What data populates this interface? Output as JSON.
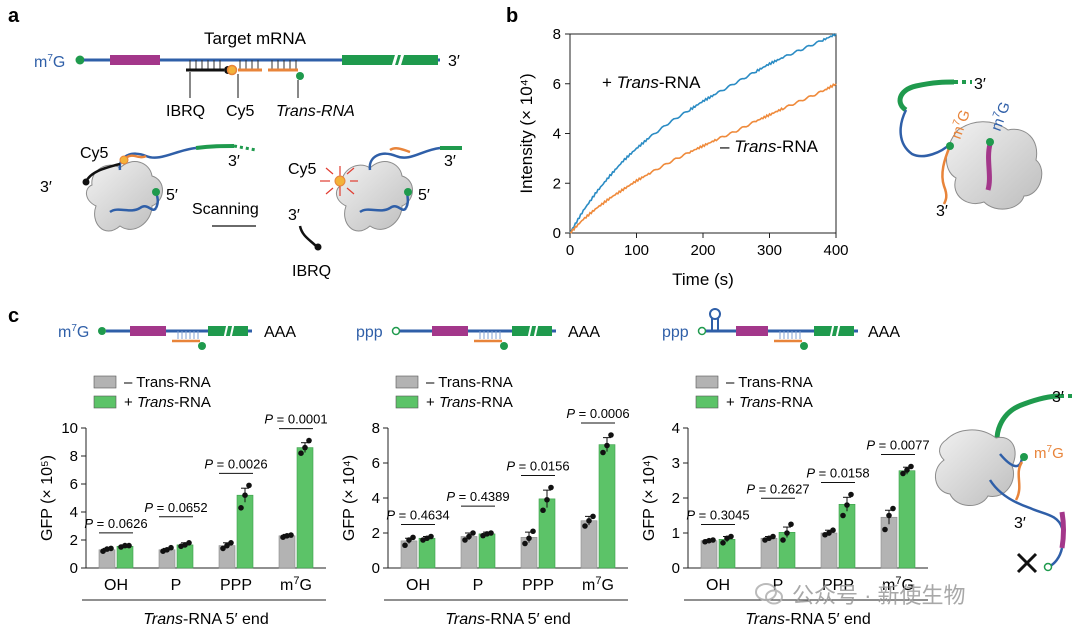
{
  "panels": {
    "a": "a",
    "b": "b",
    "c": "c"
  },
  "a": {
    "title": "Target mRNA",
    "cap": "m7G",
    "three_prime": "3′",
    "labels": {
      "ibrq": "IBRQ",
      "cy5": "Cy5",
      "trans": "Trans-RNA"
    },
    "left_cy5": "Cy5",
    "left_3": "3′",
    "left_5": "5′",
    "left_3b": "3′",
    "scanning": "Scanning",
    "right_cy5": "Cy5",
    "right_3": "3′",
    "right_5": "5′",
    "right_3b": "3′",
    "right_ibrq": "IBRQ"
  },
  "b_side": {
    "three_prime": "3′",
    "m7g_orange": "m7G",
    "m7g_blue": "m7G",
    "three_prime_b": "3′"
  },
  "c_side": {
    "three_prime": "3′",
    "m7g": "m7G",
    "three_prime_b": "3′"
  },
  "c_constructs": [
    {
      "cap": "m7G",
      "tail": "AAA"
    },
    {
      "cap": "ppp",
      "tail": "AAA"
    },
    {
      "cap": "ppp",
      "tail": "AAA"
    }
  ],
  "colors": {
    "blue": "#2f5fa8",
    "orange": "#e8843a",
    "green": "#1f9a4d",
    "magenta": "#a3378a",
    "grey_bar": "#b3b3b3",
    "green_bar": "#5cc368",
    "line_plus": "#2b8cc4",
    "line_minus": "#ef8a3b"
  },
  "chart_data": [
    {
      "type": "line",
      "title": "",
      "xlabel": "Time (s)",
      "ylabel": "Intensity (× 10⁴)",
      "xlim": [
        0,
        400
      ],
      "ylim": [
        0,
        8
      ],
      "xticks": [
        "0",
        "100",
        "200",
        "300",
        "400"
      ],
      "yticks": [
        "0",
        "2",
        "4",
        "6",
        "8"
      ],
      "series": [
        {
          "name": "+ Trans-RNA",
          "x": [
            0,
            20,
            40,
            60,
            80,
            100,
            120,
            150,
            180,
            200,
            220,
            250,
            280,
            300,
            320,
            350,
            380,
            400
          ],
          "values": [
            0,
            0.9,
            1.65,
            2.3,
            2.9,
            3.4,
            3.85,
            4.45,
            4.95,
            5.3,
            5.6,
            6.05,
            6.5,
            6.8,
            7.05,
            7.4,
            7.75,
            8.0
          ]
        },
        {
          "name": "– Trans-RNA",
          "x": [
            0,
            20,
            40,
            60,
            80,
            100,
            120,
            150,
            180,
            200,
            220,
            250,
            280,
            300,
            320,
            350,
            380,
            400
          ],
          "values": [
            0,
            0.55,
            1.0,
            1.4,
            1.75,
            2.1,
            2.4,
            2.85,
            3.25,
            3.5,
            3.75,
            4.1,
            4.5,
            4.75,
            5.0,
            5.35,
            5.7,
            6.0
          ]
        }
      ],
      "annotations": [
        "+ Trans-RNA",
        "– Trans-RNA"
      ]
    },
    {
      "type": "bar",
      "xlabel": "Trans-RNA 5′ end",
      "ylabel": "GFP (× 10⁵)",
      "ylim": [
        0,
        10
      ],
      "yticks": [
        "0",
        "2",
        "4",
        "6",
        "8",
        "10"
      ],
      "categories": [
        "OH",
        "P",
        "PPP",
        "m7G"
      ],
      "legend": [
        "– Trans-RNA",
        "+ Trans-RNA"
      ],
      "series": [
        {
          "name": "– Trans-RNA",
          "values": [
            1.3,
            1.3,
            1.6,
            2.3
          ],
          "errors": [
            0.1,
            0.1,
            0.2,
            0.1
          ],
          "points": [
            [
              1.2,
              1.35,
              1.4
            ],
            [
              1.2,
              1.3,
              1.45
            ],
            [
              1.4,
              1.6,
              1.8
            ],
            [
              2.2,
              2.3,
              2.35
            ]
          ]
        },
        {
          "name": "+ Trans-RNA",
          "values": [
            1.55,
            1.65,
            5.2,
            8.6
          ],
          "errors": [
            0.1,
            0.15,
            0.5,
            0.35
          ],
          "points": [
            [
              1.5,
              1.6,
              1.6
            ],
            [
              1.55,
              1.65,
              1.8
            ],
            [
              4.3,
              5.2,
              5.9
            ],
            [
              8.2,
              8.6,
              9.1
            ]
          ]
        }
      ],
      "pvalues": [
        "P = 0.0626",
        "P = 0.0652",
        "P = 0.0026",
        "P = 0.0001"
      ]
    },
    {
      "type": "bar",
      "xlabel": "Trans-RNA 5′ end",
      "ylabel": "GFP (× 10⁴)",
      "ylim": [
        0,
        8
      ],
      "yticks": [
        "0",
        "2",
        "4",
        "6",
        "8"
      ],
      "categories": [
        "OH",
        "P",
        "PPP",
        "m7G"
      ],
      "legend": [
        "– Trans-RNA",
        "+ Trans-RNA"
      ],
      "series": [
        {
          "name": "– Trans-RNA",
          "values": [
            1.55,
            1.8,
            1.75,
            2.7
          ],
          "errors": [
            0.15,
            0.2,
            0.3,
            0.25
          ],
          "points": [
            [
              1.3,
              1.6,
              1.75
            ],
            [
              1.6,
              1.8,
              2.0
            ],
            [
              1.4,
              1.7,
              2.1
            ],
            [
              2.4,
              2.7,
              2.95
            ]
          ]
        },
        {
          "name": "+ Trans-RNA",
          "values": [
            1.7,
            1.95,
            3.95,
            7.05
          ],
          "errors": [
            0.1,
            0.1,
            0.5,
            0.4
          ],
          "points": [
            [
              1.6,
              1.7,
              1.8
            ],
            [
              1.85,
              1.95,
              2.0
            ],
            [
              3.3,
              3.9,
              4.6
            ],
            [
              6.6,
              7.0,
              7.6
            ]
          ]
        }
      ],
      "pvalues": [
        "P = 0.4634",
        "P = 0.4389",
        "P = 0.0156",
        "P = 0.0006"
      ]
    },
    {
      "type": "bar",
      "xlabel": "Trans-RNA 5′ end",
      "ylabel": "GFP (× 10⁴)",
      "ylim": [
        0,
        4
      ],
      "yticks": [
        "0",
        "1",
        "2",
        "3",
        "4"
      ],
      "categories": [
        "OH",
        "P",
        "PPP",
        "m7G"
      ],
      "legend": [
        "– Trans-RNA",
        "+ Trans-RNA"
      ],
      "series": [
        {
          "name": "– Trans-RNA",
          "values": [
            0.78,
            0.85,
            1.0,
            1.45
          ],
          "errors": [
            0.03,
            0.05,
            0.08,
            0.2
          ],
          "points": [
            [
              0.75,
              0.78,
              0.8
            ],
            [
              0.8,
              0.85,
              0.9
            ],
            [
              0.95,
              1.0,
              1.08
            ],
            [
              1.1,
              1.5,
              1.7
            ]
          ]
        },
        {
          "name": "+ Trans-RNA",
          "values": [
            0.82,
            1.02,
            1.82,
            2.78
          ],
          "errors": [
            0.08,
            0.15,
            0.2,
            0.1
          ],
          "points": [
            [
              0.72,
              0.85,
              0.9
            ],
            [
              0.8,
              1.0,
              1.25
            ],
            [
              1.5,
              1.8,
              2.1
            ],
            [
              2.7,
              2.8,
              2.9
            ]
          ]
        }
      ],
      "pvalues": [
        "P = 0.3045",
        "P = 0.2627",
        "P = 0.0158",
        "P = 0.0077"
      ]
    }
  ],
  "watermark": "公众号 · 新使生物"
}
